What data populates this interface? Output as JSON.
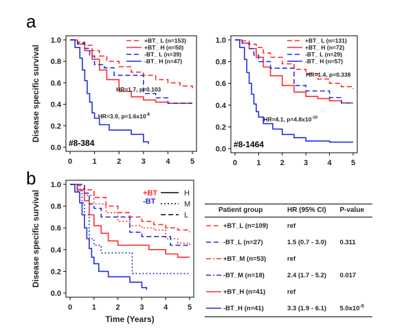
{
  "panel_labels": [
    "a",
    "b"
  ],
  "colors": {
    "plusBT": "#ff2b2b",
    "minusBT": "#1f2fd6",
    "axis": "#000000",
    "text": "#222222"
  },
  "chart_data": [
    {
      "id": "a-left",
      "type": "line",
      "plot_label": "#8-384",
      "ylabel": "Disease specific survival",
      "xlabel": "",
      "xlim": [
        0,
        5
      ],
      "ylim": [
        0,
        1
      ],
      "xticks": [
        0,
        1,
        2,
        3,
        4,
        5
      ],
      "yticks": [
        0.0,
        0.2,
        0.4,
        0.6,
        0.8,
        1.0
      ],
      "legend_position": "top-right",
      "series": [
        {
          "name": "+BT_ L (n=153)",
          "color": "#ff2b2b",
          "dash": "dashed",
          "x": [
            0,
            0.3,
            0.6,
            0.9,
            1.2,
            1.5,
            2.0,
            2.5,
            3.0,
            3.5,
            4.0,
            4.5,
            5.0
          ],
          "y": [
            1.0,
            0.98,
            0.95,
            0.9,
            0.85,
            0.8,
            0.75,
            0.7,
            0.67,
            0.63,
            0.6,
            0.57,
            0.55
          ]
        },
        {
          "name": "+BT_ H (n=50)",
          "color": "#ff2b2b",
          "dash": "solid",
          "x": [
            0,
            0.3,
            0.6,
            0.9,
            1.2,
            1.5,
            2.0,
            2.5,
            3.0,
            3.5,
            4.0,
            4.5,
            5.0
          ],
          "y": [
            1.0,
            0.96,
            0.9,
            0.82,
            0.72,
            0.63,
            0.52,
            0.47,
            0.44,
            0.42,
            0.41,
            0.41,
            0.41
          ]
        },
        {
          "name": "-BT_ L (n=39)",
          "color": "#1f2fd6",
          "dash": "dashed",
          "x": [
            0,
            0.3,
            0.6,
            0.8,
            1.0,
            1.4,
            1.8,
            2.3,
            3.0,
            3.5,
            4.0,
            4.5,
            5.0
          ],
          "y": [
            1.0,
            0.97,
            0.92,
            0.85,
            0.77,
            0.74,
            0.67,
            0.67,
            0.5,
            0.46,
            0.41,
            0.41,
            0.41
          ]
        },
        {
          "name": "-BT_ H (n=47)",
          "color": "#1f2fd6",
          "dash": "solid",
          "x": [
            0,
            0.2,
            0.4,
            0.5,
            0.6,
            0.7,
            0.8,
            0.9,
            1.0,
            1.2,
            1.6,
            2.0,
            2.5,
            3.0,
            3.2
          ],
          "y": [
            1.0,
            0.93,
            0.83,
            0.72,
            0.62,
            0.5,
            0.42,
            0.32,
            0.27,
            0.21,
            0.16,
            0.16,
            0.12,
            0.05,
            0.03
          ]
        }
      ],
      "annotations": [
        {
          "text": "HR=1.7, p=0.103",
          "x": 2.8,
          "y": 0.52,
          "color": "#222222",
          "anchor": "middle"
        },
        {
          "text": "HR=3.9, p=1.6x10",
          "sup": "-8",
          "x": 2.2,
          "y": 0.27,
          "color": "#222222",
          "anchor": "middle"
        }
      ]
    },
    {
      "id": "a-right",
      "type": "line",
      "plot_label": "#8-1464",
      "ylabel": "",
      "xlabel": "",
      "xlim": [
        0,
        5
      ],
      "ylim": [
        0,
        1
      ],
      "xticks": [
        0,
        1,
        2,
        3,
        4,
        5
      ],
      "yticks": [
        0.0,
        0.2,
        0.4,
        0.6,
        0.8,
        1.0
      ],
      "legend_position": "top-right",
      "series": [
        {
          "name": "+BT_ L (n=131)",
          "color": "#ff2b2b",
          "dash": "dashed",
          "x": [
            0,
            0.3,
            0.6,
            0.9,
            1.2,
            1.5,
            2.0,
            2.5,
            3.0,
            3.5,
            4.0,
            4.5,
            5.0
          ],
          "y": [
            1.0,
            0.99,
            0.96,
            0.93,
            0.88,
            0.84,
            0.78,
            0.73,
            0.69,
            0.64,
            0.6,
            0.57,
            0.55
          ]
        },
        {
          "name": "+BT_ H (n=72)",
          "color": "#ff2b2b",
          "dash": "solid",
          "x": [
            0,
            0.3,
            0.6,
            0.9,
            1.2,
            1.5,
            2.0,
            2.5,
            3.0,
            3.5,
            4.0,
            4.5,
            5.0
          ],
          "y": [
            1.0,
            0.97,
            0.92,
            0.84,
            0.75,
            0.67,
            0.58,
            0.52,
            0.48,
            0.46,
            0.44,
            0.42,
            0.42
          ]
        },
        {
          "name": "-BT_ L (n=29)",
          "color": "#1f2fd6",
          "dash": "dashed",
          "x": [
            0,
            0.3,
            0.6,
            0.8,
            1.0,
            1.5,
            2.2,
            2.5,
            3.0,
            3.5,
            4.0,
            4.5,
            5.0
          ],
          "y": [
            1.0,
            0.97,
            0.92,
            0.86,
            0.8,
            0.74,
            0.74,
            0.58,
            0.53,
            0.53,
            0.47,
            0.42,
            0.42
          ]
        },
        {
          "name": "-BT_ H (n=57)",
          "color": "#1f2fd6",
          "dash": "solid",
          "x": [
            0,
            0.2,
            0.4,
            0.5,
            0.6,
            0.7,
            0.8,
            0.9,
            1.0,
            1.2,
            1.6,
            2.0,
            2.5,
            3.0,
            4.0,
            5.0
          ],
          "y": [
            1.0,
            0.93,
            0.82,
            0.7,
            0.6,
            0.5,
            0.41,
            0.34,
            0.29,
            0.23,
            0.18,
            0.13,
            0.1,
            0.07,
            0.06,
            0.06
          ]
        }
      ],
      "annotations": [
        {
          "text": "HR=1.4, p=0.338",
          "x": 3.95,
          "y": 0.66,
          "color": "#222222",
          "anchor": "middle"
        },
        {
          "text": "HR=4.1, p=4.8x10",
          "sup": "-10",
          "x": 2.35,
          "y": 0.25,
          "color": "#222222",
          "anchor": "middle"
        }
      ]
    },
    {
      "id": "b",
      "type": "line",
      "plot_label": "",
      "ylabel": "Disease specific survival",
      "xlabel": "Time (Years)",
      "xlim": [
        0,
        5
      ],
      "ylim": [
        0,
        1
      ],
      "xticks": [
        0,
        1,
        2,
        3,
        4,
        5
      ],
      "yticks": [
        0.0,
        0.2,
        0.4,
        0.6,
        0.8,
        1.0
      ],
      "legend_position": "top-right",
      "legend_groups": [
        {
          "text": "+BT",
          "color": "#ff2b2b"
        },
        {
          "text": "-BT",
          "color": "#1f2fd6"
        }
      ],
      "legend_styles": [
        {
          "text": "H",
          "dash": "solid"
        },
        {
          "text": "M",
          "dash": "dotted"
        },
        {
          "text": "L",
          "dash": "dashed"
        }
      ],
      "series": [
        {
          "group": "+BT_L",
          "color": "#ff2b2b",
          "dash": "dashed",
          "x": [
            0,
            0.3,
            0.6,
            1.0,
            1.5,
            2.0,
            2.5,
            3.0,
            3.5,
            4.0,
            4.5,
            5.0
          ],
          "y": [
            1.0,
            0.99,
            0.95,
            0.88,
            0.8,
            0.74,
            0.7,
            0.66,
            0.63,
            0.6,
            0.58,
            0.56
          ]
        },
        {
          "group": "+BT_M",
          "color": "#ff2b2b",
          "dash": "dotted",
          "x": [
            0,
            0.3,
            0.6,
            1.0,
            1.5,
            2.0,
            2.5,
            3.0,
            3.5,
            4.0,
            4.5,
            5.0
          ],
          "y": [
            1.0,
            0.96,
            0.9,
            0.82,
            0.74,
            0.66,
            0.62,
            0.6,
            0.58,
            0.5,
            0.46,
            0.44
          ]
        },
        {
          "group": "+BT_H",
          "color": "#ff2b2b",
          "dash": "solid",
          "x": [
            0,
            0.3,
            0.6,
            0.8,
            1.0,
            1.3,
            1.6,
            2.0,
            3.0,
            3.3,
            4.0,
            4.5,
            5.0
          ],
          "y": [
            1.0,
            0.95,
            0.85,
            0.72,
            0.62,
            0.55,
            0.48,
            0.44,
            0.44,
            0.4,
            0.36,
            0.33,
            0.33
          ]
        },
        {
          "group": "-BT_L",
          "color": "#1f2fd6",
          "dash": "dashed",
          "x": [
            0,
            0.4,
            0.6,
            0.8,
            1.0,
            1.3,
            2.0,
            2.5,
            3.0,
            4.0,
            4.2,
            5.0
          ],
          "y": [
            1.0,
            1.0,
            0.92,
            0.82,
            0.78,
            0.7,
            0.7,
            0.56,
            0.52,
            0.52,
            0.44,
            0.44
          ]
        },
        {
          "group": "-BT_M",
          "color": "#1f2fd6",
          "dash": "dotted",
          "x": [
            0,
            0.3,
            0.5,
            0.6,
            0.8,
            1.0,
            1.3,
            2.0,
            2.6,
            3.0,
            5.0
          ],
          "y": [
            1.0,
            0.94,
            0.83,
            0.72,
            0.5,
            0.44,
            0.37,
            0.37,
            0.18,
            0.18,
            0.18
          ]
        },
        {
          "group": "-BT_H",
          "color": "#1f2fd6",
          "dash": "solid",
          "x": [
            0,
            0.2,
            0.4,
            0.5,
            0.6,
            0.7,
            0.8,
            0.9,
            1.0,
            1.2,
            1.6,
            2.0,
            2.5,
            3.0,
            3.2
          ],
          "y": [
            1.0,
            0.93,
            0.83,
            0.72,
            0.6,
            0.5,
            0.41,
            0.33,
            0.27,
            0.2,
            0.15,
            0.15,
            0.1,
            0.05,
            0.03
          ]
        }
      ]
    }
  ],
  "table": {
    "headers": [
      "Patient group",
      "HR (95% CI)",
      "P-value"
    ],
    "rows": [
      {
        "group": "+BT_L (n=109)",
        "hr": "ref",
        "p": "",
        "color": "#ff2b2b",
        "dash": "dashed"
      },
      {
        "group": "-BT_L (n=27)",
        "hr": "1.5 (0.7 - 3.0)",
        "p": "0.311",
        "color": "#1f2fd6",
        "dash": "dashed"
      },
      {
        "group": "+BT_M (n=53)",
        "hr": "ref",
        "p": "",
        "color": "#ff2b2b",
        "dash": "dashdot"
      },
      {
        "group": "-BT_M (n=18)",
        "hr": "2.4 (1.7 - 5.2)",
        "p": "0.017",
        "color": "#1f2fd6",
        "dash": "dashdot"
      },
      {
        "group": "+BT_H (n=41)",
        "hr": "ref",
        "p": "",
        "color": "#ff2b2b",
        "dash": "solid"
      },
      {
        "group": "-BT_H (n=41)",
        "hr": "3.3 (1.9 - 6.1)",
        "p": "5.0x10",
        "p_sup": "-5",
        "color": "#1f2fd6",
        "dash": "solid"
      }
    ]
  }
}
